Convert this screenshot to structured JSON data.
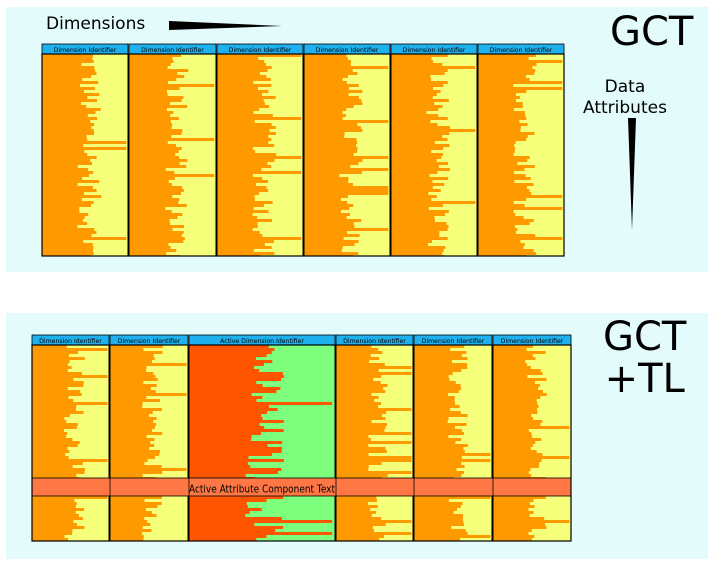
{
  "top": {
    "title": "GCT",
    "dimensions_label": "Dimensions",
    "data_attributes_label": "Data\nAttributes",
    "column_headers": [
      "Dimension Identifier",
      "Dimension Identifier",
      "Dimension Identifier",
      "Dimension Identifier",
      "Dimension Identifier",
      "Dimension Identifier"
    ]
  },
  "bottom": {
    "title": "GCT\n+TL",
    "column_headers": [
      "Dimension Identifier",
      "Dimension Identifier",
      "Active Dimension Identifier",
      "Dimension Identifier",
      "Dimension Identifier",
      "Dimension Identifier"
    ],
    "active_row_text": "Active Attribute Component Text"
  },
  "colors": {
    "panel_bg": "#e3fbfb",
    "header_bg": "#1fb0ee",
    "bar_orange": "#ff9900",
    "bar_yellow": "#f5ff7a",
    "active_bar": "#ff5500",
    "active_bg": "#7dff7d",
    "active_row": "#ff7744"
  }
}
